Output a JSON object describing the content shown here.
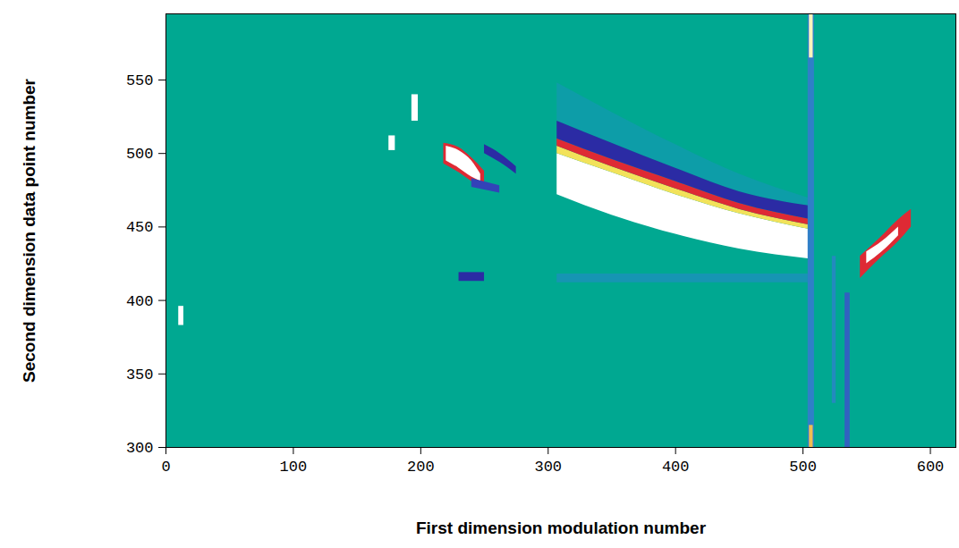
{
  "chart_data": {
    "type": "heatmap",
    "x_label": "First dimension modulation number",
    "y_label": "Second dimension data point number",
    "xlim": [
      0,
      620
    ],
    "ylim": [
      300,
      595
    ],
    "xticks": [
      0,
      100,
      200,
      300,
      400,
      500,
      600
    ],
    "yticks": [
      300,
      350,
      400,
      450,
      500,
      550
    ],
    "zlim": [
      -1,
      1
    ],
    "bands": [
      {
        "value": 0,
        "x": [
          0,
          620
        ],
        "y1": [
          300,
          300
        ],
        "y2": [
          595,
          595
        ]
      },
      {
        "value": -0.2,
        "x": [
          307,
          350,
          400,
          450,
          507
        ],
        "y1": [
          522,
          507,
          490,
          474,
          464
        ],
        "y2": [
          548,
          528,
          506,
          486,
          469
        ]
      },
      {
        "value": 1,
        "x": [
          307,
          350,
          400,
          450,
          507
        ],
        "y1": [
          472,
          458,
          445,
          435,
          428
        ],
        "y2": [
          500,
          487,
          472,
          459,
          448
        ]
      },
      {
        "value": 0.75,
        "x": [
          307,
          350,
          400,
          450,
          507
        ],
        "y1": [
          500,
          487,
          472,
          459,
          448
        ],
        "y2": [
          505,
          491,
          476,
          462,
          451
        ]
      },
      {
        "value": 0.5,
        "x": [
          307,
          350,
          400,
          450,
          507
        ],
        "y1": [
          505,
          491,
          476,
          462,
          451
        ],
        "y2": [
          510,
          496,
          481,
          466,
          455
        ]
      },
      {
        "value": -0.85,
        "x": [
          307,
          350,
          400,
          450,
          507
        ],
        "y1": [
          510,
          496,
          481,
          466,
          455
        ],
        "y2": [
          522,
          507,
          490,
          474,
          464
        ]
      },
      {
        "value": -0.3,
        "x": [
          307,
          507
        ],
        "y1": [
          412,
          412
        ],
        "y2": [
          418,
          418
        ]
      },
      {
        "value": -0.85,
        "x": [
          230,
          250
        ],
        "y1": [
          413,
          413
        ],
        "y2": [
          419,
          419
        ]
      },
      {
        "value": 0.5,
        "x": [
          218,
          230,
          240,
          250
        ],
        "y1": [
          493,
          487,
          481,
          477
        ],
        "y2": [
          507,
          504,
          497,
          488
        ]
      },
      {
        "value": 1,
        "x": [
          220,
          230,
          240,
          247
        ],
        "y1": [
          495,
          490,
          484,
          481
        ],
        "y2": [
          505,
          502,
          495,
          486
        ]
      },
      {
        "value": -0.85,
        "x": [
          250,
          262,
          275
        ],
        "y1": [
          500,
          494,
          486
        ],
        "y2": [
          506,
          500,
          491
        ]
      },
      {
        "value": -0.7,
        "x": [
          240,
          262
        ],
        "y1": [
          477,
          473
        ],
        "y2": [
          483,
          478
        ]
      },
      {
        "value": 1,
        "x": [
          193,
          198
        ],
        "y1": [
          522,
          522
        ],
        "y2": [
          540,
          540
        ]
      },
      {
        "value": 1,
        "x": [
          175,
          180
        ],
        "y1": [
          502,
          502
        ],
        "y2": [
          512,
          512
        ]
      },
      {
        "value": 1,
        "x": [
          10,
          14
        ],
        "y1": [
          383,
          383
        ],
        "y2": [
          396,
          396
        ]
      },
      {
        "value": 0.5,
        "x": [
          545,
          560,
          575,
          585
        ],
        "y1": [
          415,
          428,
          440,
          450
        ],
        "y2": [
          430,
          442,
          455,
          462
        ]
      },
      {
        "value": 1,
        "x": [
          550,
          562,
          575
        ],
        "y1": [
          425,
          433,
          444
        ],
        "y2": [
          433,
          440,
          450
        ]
      },
      {
        "value": -0.5,
        "x": [
          504,
          509
        ],
        "y1": [
          300,
          300
        ],
        "y2": [
          595,
          595
        ]
      },
      {
        "value": 0.9,
        "x": [
          505,
          508
        ],
        "y1": [
          565,
          565
        ],
        "y2": [
          595,
          595
        ]
      },
      {
        "value": 0.7,
        "x": [
          505,
          508
        ],
        "y1": [
          300,
          300
        ],
        "y2": [
          315,
          315
        ]
      },
      {
        "value": -0.6,
        "x": [
          533,
          537
        ],
        "y1": [
          300,
          300
        ],
        "y2": [
          405,
          405
        ]
      },
      {
        "value": -0.4,
        "x": [
          523,
          526
        ],
        "y1": [
          330,
          330
        ],
        "y2": [
          430,
          430
        ]
      }
    ]
  }
}
